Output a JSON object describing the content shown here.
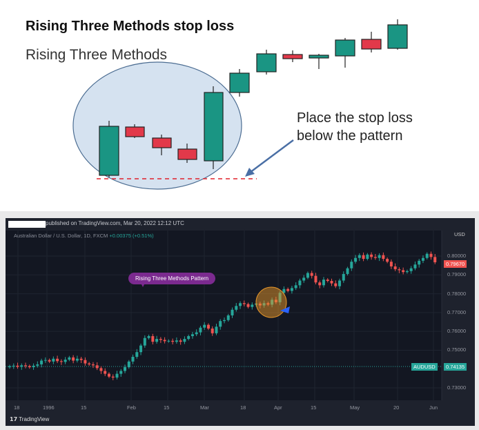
{
  "diagram": {
    "title": "Rising Three Methods stop loss",
    "subtitle": "Rising Three Methods",
    "annotation_line1": "Place the stop loss",
    "annotation_line2": "below the pattern",
    "colors": {
      "bull": "#1a9583",
      "bear": "#e2394a",
      "circle": "#d5e2f0",
      "stop": "#e0202a"
    }
  },
  "chart": {
    "publisher": "published on TradingView.com, Mar 20, 2022 12:12 UTC",
    "symbol": "Australian Dollar / U.S. Dollar, 1D, FXCM",
    "change": "+0.00375 (+0.51%)",
    "currency": "USD",
    "callout": "Rising Three Methods Pattern",
    "last_price": "0.79670",
    "ref_label": "AUDUSD",
    "ref_price": "0.74135",
    "logo": "TradingView",
    "price_ticks": [
      "0.80000",
      "0.79000",
      "0.78000",
      "0.77000",
      "0.76000",
      "0.75000",
      "0.73000"
    ],
    "time_ticks": [
      "18",
      "1996",
      "15",
      "Feb",
      "15",
      "Mar",
      "18",
      "Apr",
      "15",
      "May",
      "20",
      "Jun"
    ]
  },
  "chart_data": {
    "type": "candlestick",
    "ylim": [
      0.727,
      0.8045
    ],
    "closes": [
      0.7415,
      0.7418,
      0.7412,
      0.742,
      0.7416,
      0.741,
      0.7418,
      0.7425,
      0.7445,
      0.7448,
      0.744,
      0.7455,
      0.7442,
      0.7438,
      0.745,
      0.7462,
      0.7445,
      0.7455,
      0.7448,
      0.743,
      0.7425,
      0.742,
      0.7405,
      0.739,
      0.7375,
      0.736,
      0.7355,
      0.7375,
      0.739,
      0.741,
      0.744,
      0.7465,
      0.749,
      0.7525,
      0.7565,
      0.7575,
      0.7545,
      0.756,
      0.7555,
      0.7548,
      0.755,
      0.7545,
      0.7552,
      0.7545,
      0.756,
      0.7575,
      0.7585,
      0.7595,
      0.762,
      0.7635,
      0.7615,
      0.759,
      0.7625,
      0.7655,
      0.766,
      0.7685,
      0.7715,
      0.7735,
      0.775,
      0.7745,
      0.773,
      0.7742,
      0.7748,
      0.7738,
      0.775,
      0.7742,
      0.7768,
      0.7755,
      0.7805,
      0.7825,
      0.7815,
      0.783,
      0.7845,
      0.787,
      0.7885,
      0.791,
      0.7895,
      0.786,
      0.7845,
      0.7875,
      0.7868,
      0.7855,
      0.784,
      0.787,
      0.7905,
      0.7935,
      0.797,
      0.799,
      0.8005,
      0.7985,
      0.8008,
      0.7995,
      0.799,
      0.8005,
      0.7985,
      0.797,
      0.7945,
      0.793,
      0.7925,
      0.7915,
      0.792,
      0.7935,
      0.7955,
      0.7975,
      0.799,
      0.8012,
      0.7995,
      0.7967
    ]
  }
}
